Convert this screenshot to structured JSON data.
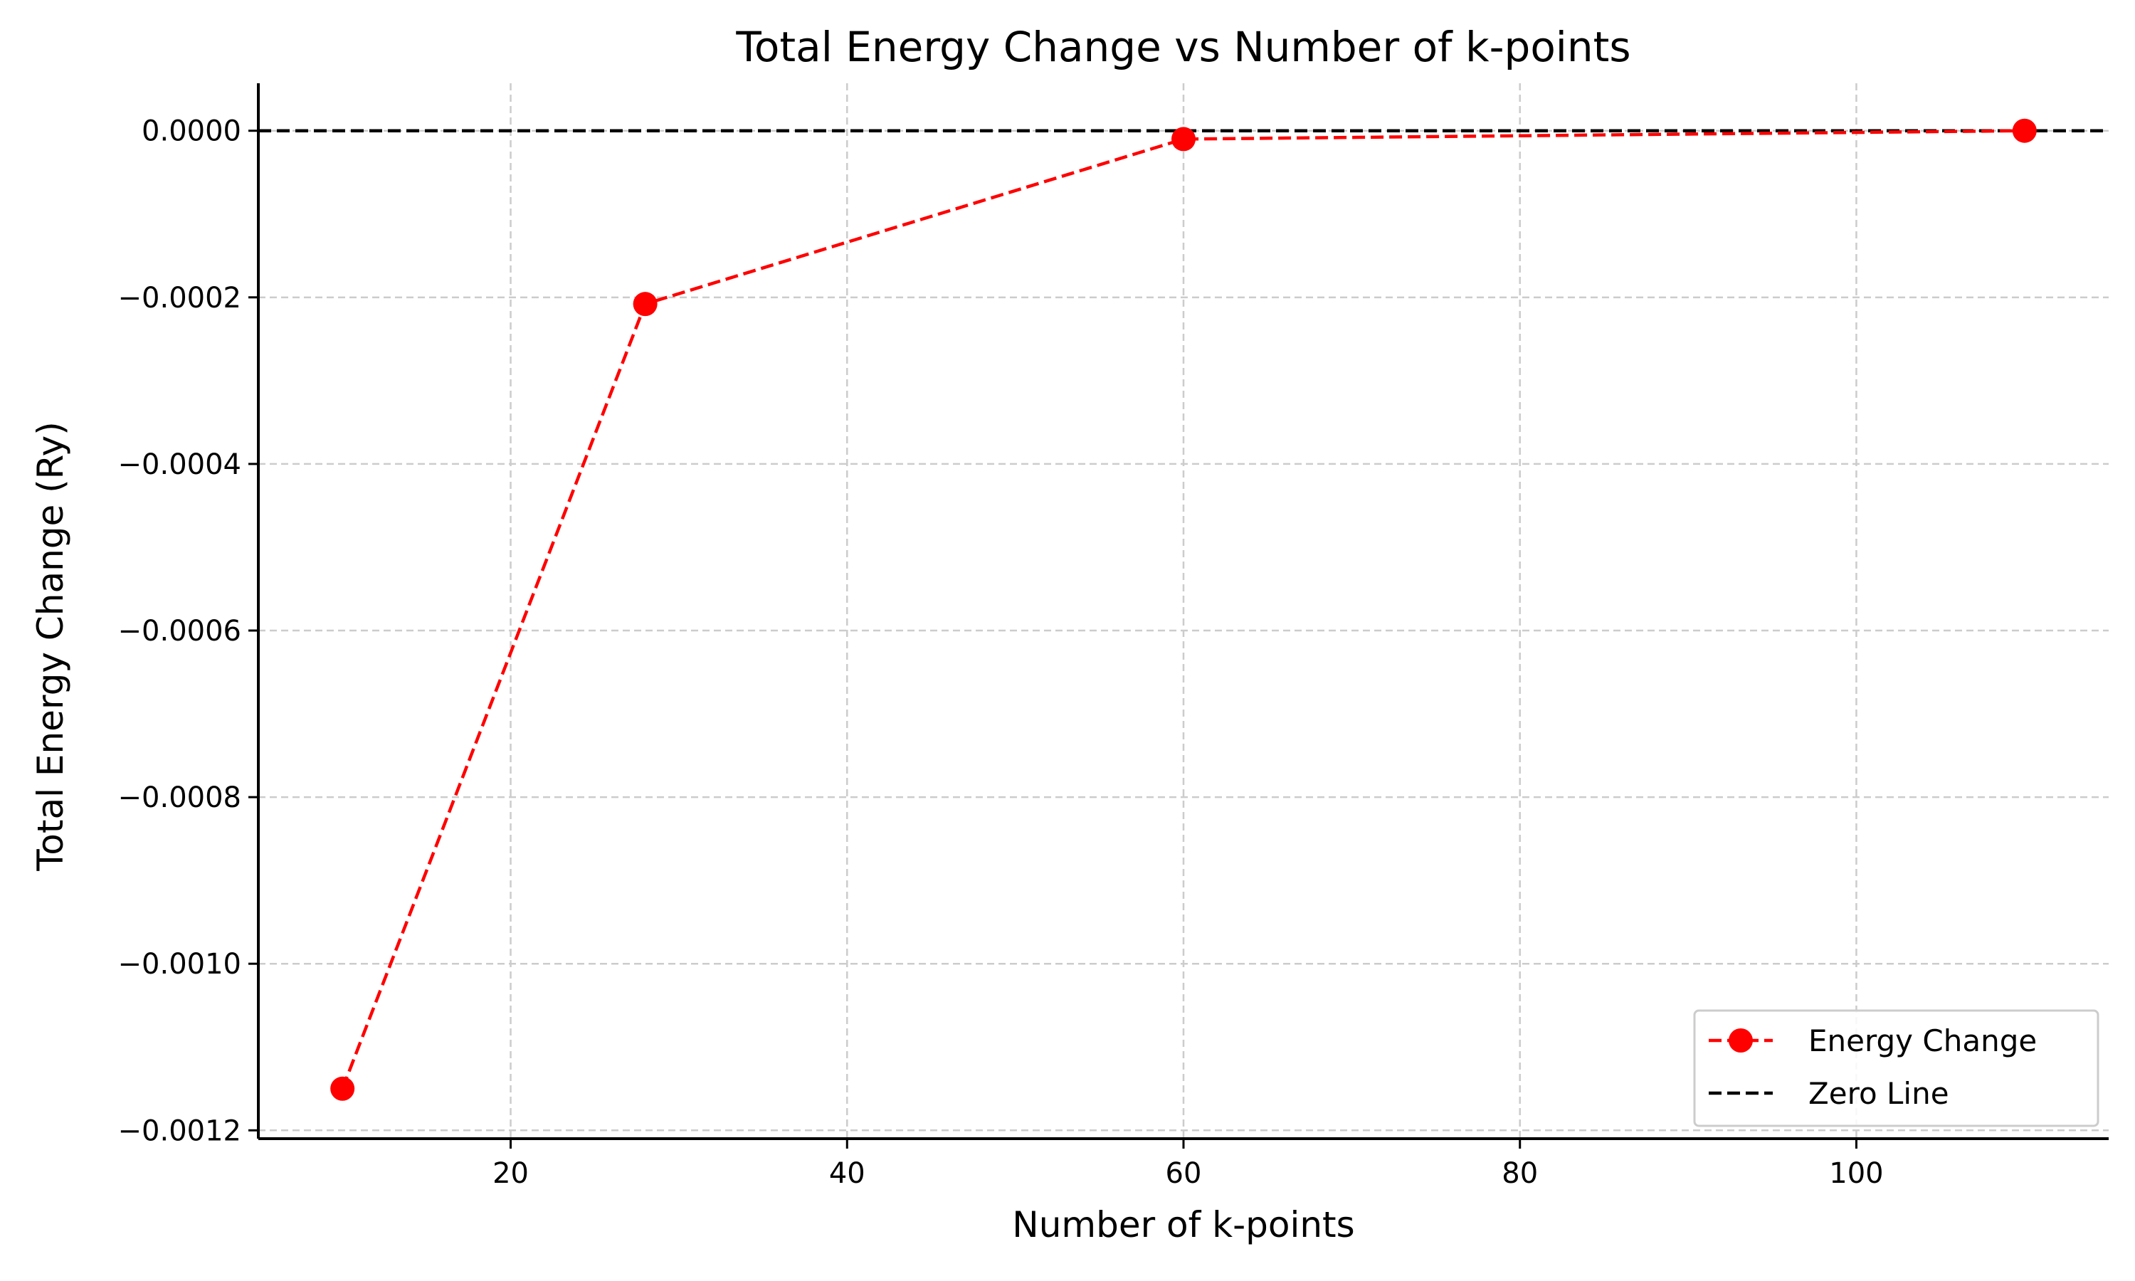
{
  "chart_data": {
    "type": "line",
    "title": "Total Energy Change vs Number of k-points",
    "xlabel": "Number of k-points",
    "ylabel": "Total Energy Change (Ry)",
    "xlim": [
      5,
      115
    ],
    "ylim": [
      -0.00121,
      5.7e-05
    ],
    "xticks": [
      20,
      40,
      60,
      80,
      100
    ],
    "xtick_labels": [
      "20",
      "40",
      "60",
      "80",
      "100"
    ],
    "yticks": [
      0.0,
      -0.0002,
      -0.0004,
      -0.0006,
      -0.0008,
      -0.001,
      -0.0012
    ],
    "ytick_labels": [
      "0.0000",
      "−0.0002",
      "−0.0004",
      "−0.0006",
      "−0.0008",
      "−0.0010",
      "−0.0012"
    ],
    "grid": true,
    "legend_position": "lower-right",
    "series": [
      {
        "name": "Energy Change",
        "color": "#ff0000",
        "line_style": "dashed",
        "marker": "circle",
        "x": [
          10,
          28,
          60,
          110
        ],
        "y": [
          -0.00115,
          -0.000208,
          -1e-05,
          0.0
        ]
      }
    ],
    "reference_lines": [
      {
        "name": "Zero Line",
        "color": "#000000",
        "line_style": "dashed",
        "y": 0.0
      }
    ]
  }
}
